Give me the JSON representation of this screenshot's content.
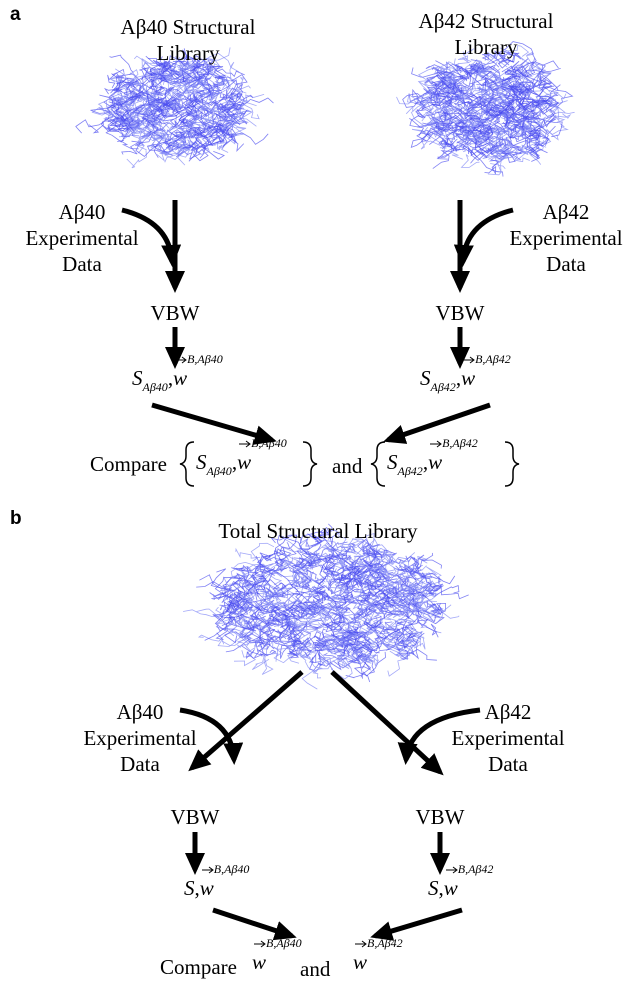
{
  "panels": [
    {
      "label": "a",
      "libraries": [
        {
          "lines": [
            "Aβ40 Structural",
            "Library"
          ]
        },
        {
          "lines": [
            "Aβ42 Structural",
            "Library"
          ]
        }
      ],
      "inputs": [
        {
          "lines": [
            "Aβ40",
            "Experimental",
            "Data"
          ]
        },
        {
          "lines": [
            "Aβ42",
            "Experimental",
            "Data"
          ]
        }
      ],
      "methods": [
        "VBW",
        "VBW"
      ],
      "outputs": [
        {
          "symbol": "S",
          "subscript": "Aβ40",
          "separator": ",",
          "vector": "w",
          "superscript": "B,Aβ40"
        },
        {
          "symbol": "S",
          "subscript": "Aβ42",
          "separator": ",",
          "vector": "w",
          "superscript": "B,Aβ42"
        }
      ],
      "compare": {
        "word": "Compare",
        "conjunction": "and",
        "items": [
          {
            "symbol": "S",
            "subscript": "Aβ40",
            "separator": ",",
            "vector": "w",
            "superscript": "B,Aβ40"
          },
          {
            "symbol": "S",
            "subscript": "Aβ42",
            "separator": ",",
            "vector": "w",
            "superscript": "B,Aβ42"
          }
        ]
      }
    },
    {
      "label": "b",
      "libraries": [
        {
          "lines": [
            "Total Structural Library"
          ]
        }
      ],
      "inputs": [
        {
          "lines": [
            "Aβ40",
            "Experimental",
            "Data"
          ]
        },
        {
          "lines": [
            "Aβ42",
            "Experimental",
            "Data"
          ]
        }
      ],
      "methods": [
        "VBW",
        "VBW"
      ],
      "outputs": [
        {
          "symbol": "S",
          "separator": ",",
          "vector": "w",
          "superscript": "B,Aβ40"
        },
        {
          "symbol": "S",
          "separator": ",",
          "vector": "w",
          "superscript": "B,Aβ42"
        }
      ],
      "compare": {
        "word": "Compare",
        "conjunction": "and",
        "items": [
          {
            "vector": "w",
            "superscript": "B,Aβ40"
          },
          {
            "vector": "w",
            "superscript": "B,Aβ42"
          }
        ]
      }
    }
  ]
}
